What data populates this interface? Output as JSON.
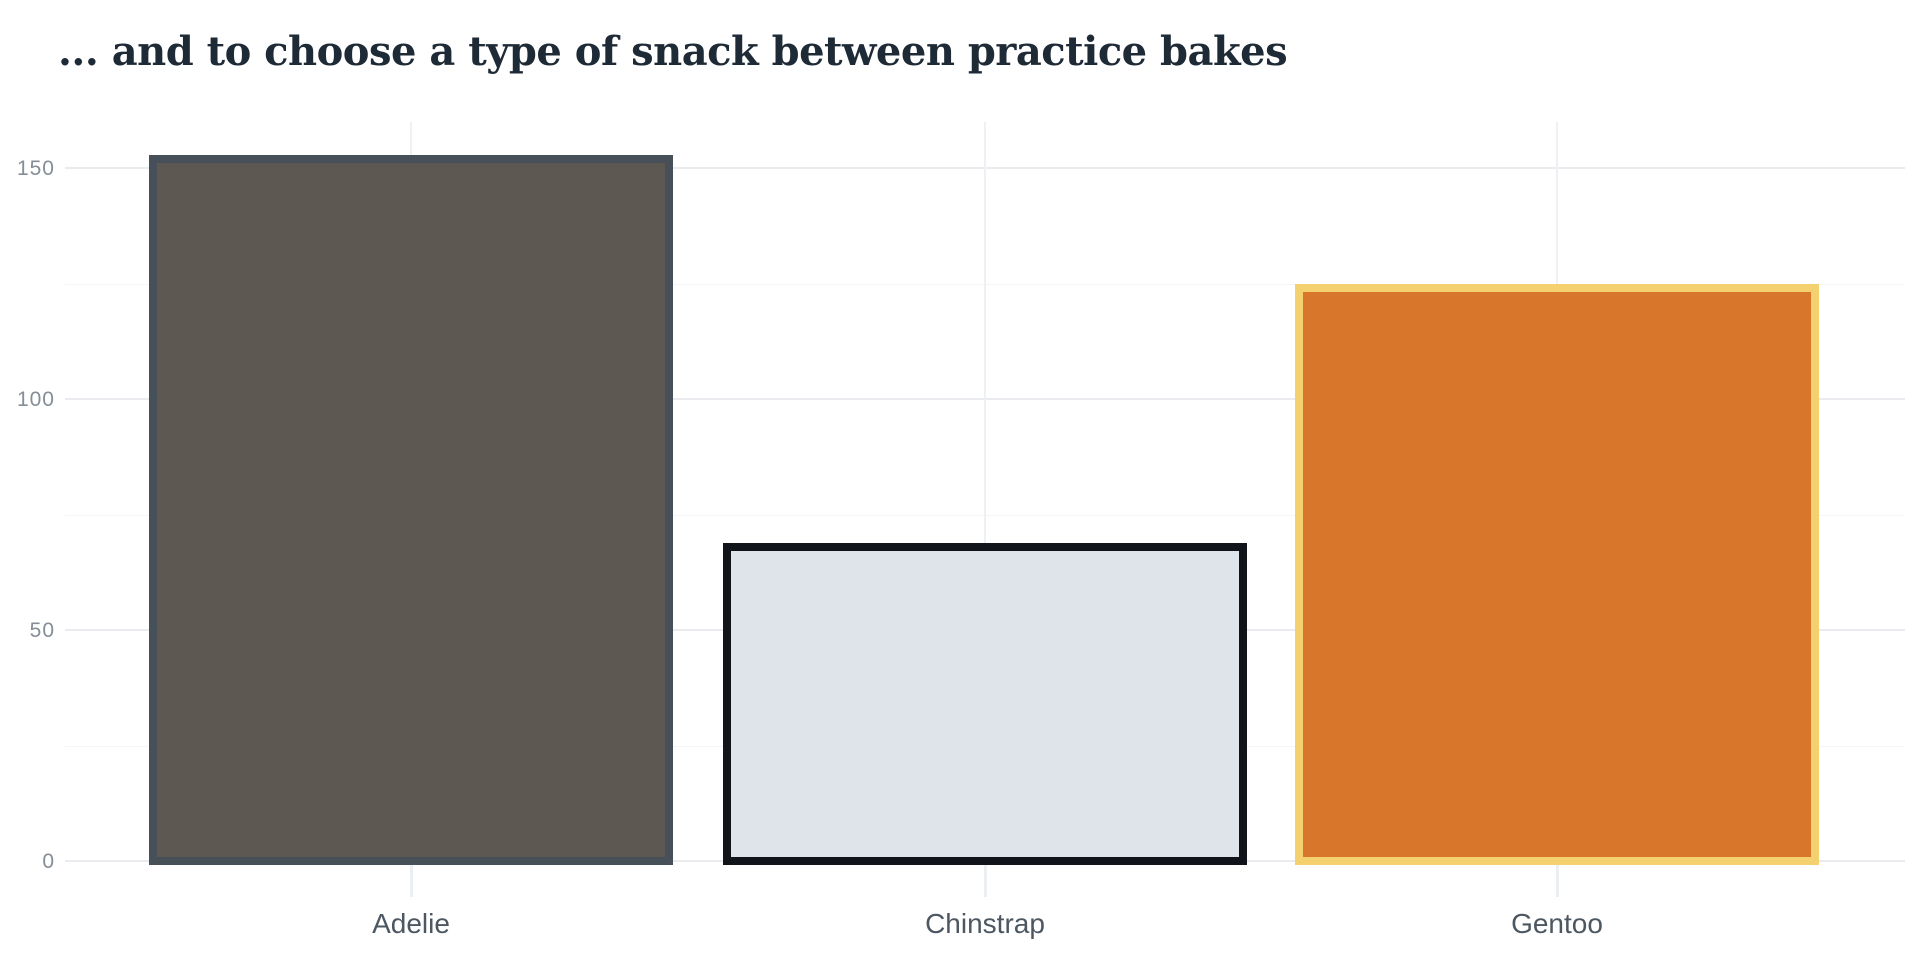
{
  "page": {
    "background": "#ffffff"
  },
  "chart_data": {
    "type": "bar",
    "title": "... and to choose a type of snack between practice bakes",
    "categories": [
      "Adelie",
      "Chinstrap",
      "Gentoo"
    ],
    "values": [
      152,
      68,
      124
    ],
    "bars": [
      {
        "category": "Adelie",
        "value": 152,
        "fill": "#5e5852",
        "stroke": "#475059"
      },
      {
        "category": "Chinstrap",
        "value": 68,
        "fill": "#dfe4ea",
        "stroke": "#111519"
      },
      {
        "category": "Gentoo",
        "value": 124,
        "fill": "#d8772b",
        "stroke": "#f4d06e"
      }
    ],
    "xlabel": "",
    "ylabel": "",
    "ylim": [
      0,
      160
    ],
    "yticks_major": [
      0,
      50,
      100,
      150
    ],
    "yticks_minor": [
      25,
      75,
      125
    ],
    "grid": true,
    "legend": "none",
    "colors": {
      "title_text": "#1e2a36",
      "y_tick_text": "#858d96",
      "x_label_text": "#4d5761",
      "grid_major": "#e9ebee",
      "grid_minor": "#f4f5f7",
      "grid_vertical": "#eef1f3",
      "background": "#ffffff"
    }
  }
}
